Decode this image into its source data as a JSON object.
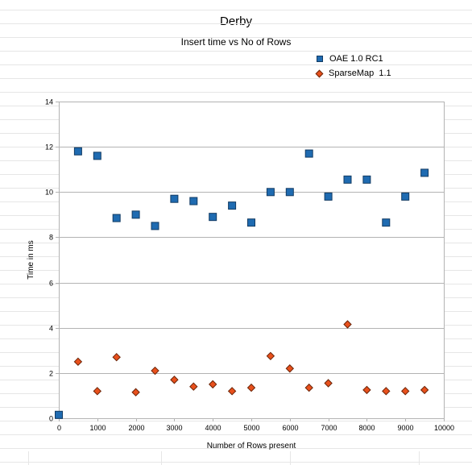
{
  "chart_data": {
    "type": "scatter",
    "title": "Derby",
    "subtitle": "Insert time vs No of Rows",
    "xlabel": "Number of Rows present",
    "ylabel": "Time in ms",
    "xlim": [
      0,
      10000
    ],
    "ylim": [
      0,
      14
    ],
    "xticks": [
      0,
      1000,
      2000,
      3000,
      4000,
      5000,
      6000,
      7000,
      8000,
      9000,
      10000
    ],
    "yticks": [
      0,
      2,
      4,
      6,
      8,
      10,
      12,
      14
    ],
    "grid": true,
    "legend_position": "top-right",
    "series": [
      {
        "name": "OAE 1.0 RC1",
        "marker": "square",
        "color": "#1f6bb1",
        "x": [
          0,
          500,
          1000,
          1500,
          2000,
          2500,
          3000,
          3500,
          4000,
          4500,
          5000,
          5500,
          6000,
          6500,
          7000,
          7500,
          8000,
          8500,
          9000,
          9500
        ],
        "y": [
          0.15,
          11.8,
          11.6,
          8.85,
          9.0,
          8.5,
          9.7,
          9.6,
          8.9,
          9.4,
          8.65,
          10.0,
          10.0,
          11.7,
          9.8,
          10.55,
          10.55,
          8.65,
          9.8,
          10.85
        ]
      },
      {
        "name": "SparseMap  1.1",
        "marker": "diamond",
        "color": "#e8501c",
        "x": [
          500,
          1000,
          1500,
          2000,
          2500,
          3000,
          3500,
          4000,
          4500,
          5000,
          5500,
          6000,
          6500,
          7000,
          7500,
          8000,
          8500,
          9000,
          9500
        ],
        "y": [
          2.5,
          1.2,
          2.7,
          1.15,
          2.1,
          1.7,
          1.4,
          1.5,
          1.2,
          1.35,
          2.75,
          2.2,
          1.35,
          1.55,
          4.15,
          1.25,
          1.2,
          1.2,
          1.25
        ]
      }
    ]
  }
}
